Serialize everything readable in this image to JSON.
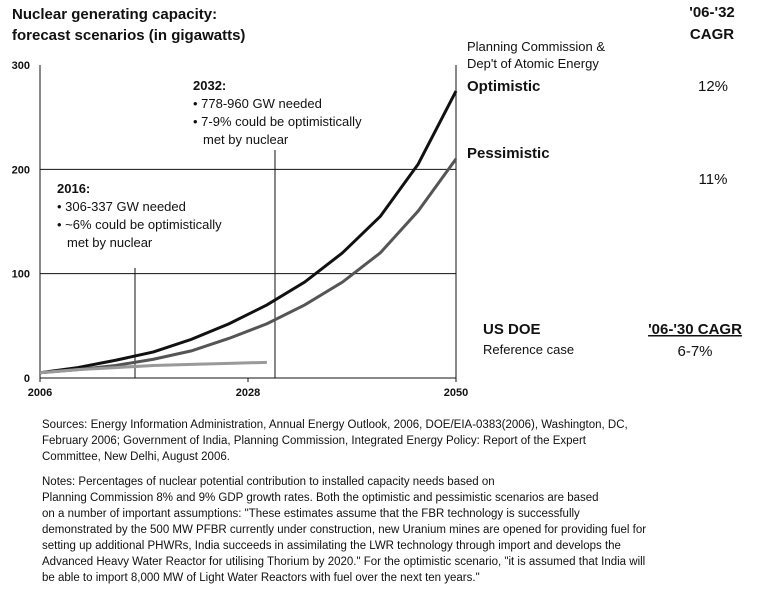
{
  "chart_data": {
    "type": "line",
    "title_lines": [
      "Nuclear generating capacity:",
      "forecast scenarios (in gigawatts)"
    ],
    "xlim": [
      2006,
      2050
    ],
    "xticks": [
      2006,
      2028,
      2050
    ],
    "ylim": [
      0,
      300
    ],
    "yticks": [
      0,
      100,
      200,
      300
    ],
    "grid": true,
    "x": [
      2006,
      2010,
      2014,
      2018,
      2022,
      2026,
      2030,
      2034,
      2038,
      2042,
      2046,
      2050
    ],
    "series": [
      {
        "name": "Optimistic",
        "color": "#111111",
        "cagr": "12%",
        "values": [
          5,
          10,
          17,
          25,
          37,
          52,
          70,
          92,
          120,
          155,
          205,
          275
        ]
      },
      {
        "name": "Pessimistic",
        "color": "#555555",
        "cagr": "11%",
        "values": [
          5,
          8,
          12,
          18,
          26,
          38,
          52,
          70,
          92,
          120,
          160,
          210
        ]
      },
      {
        "name": "US DOE",
        "color": "#999999",
        "subtitle": "Reference case",
        "cagr_header": "'06-'30 CAGR",
        "cagr": "6-7%",
        "values": [
          5,
          8,
          10,
          12,
          13,
          14,
          15,
          null,
          null,
          null,
          null,
          null
        ]
      }
    ],
    "cagr_header_lines": [
      "'06-'32",
      "CAGR"
    ],
    "source_lines": [
      "Planning Commission &",
      "Dep't of Atomic Energy"
    ],
    "annotations": [
      {
        "heading": "2032:",
        "lines": [
          "• 778-960 GW needed",
          "• 7-9% could be optimistically",
          "met by nuclear"
        ]
      },
      {
        "heading": "2016:",
        "lines": [
          "• 306-337 GW needed",
          "• ~6% could be optimistically",
          "met by nuclear"
        ]
      }
    ],
    "sources": [
      "Sources:  Energy Information Administration,  Annual Energy Outlook, 2006,  DOE/EIA-0383(2006), Washington, DC,",
      "February 2006; Government of India, Planning Commission,  Integrated Energy Policy:  Report of the Expert",
      "Committee, New Delhi, August 2006."
    ],
    "notes": [
      "Notes:  Percentages of nuclear potential contribution to installed capacity needs based on",
      "Planning Commission 8% and 9% GDP growth rates.  Both the optimistic and pessimistic scenarios are based",
      "on a number of important assumptions:  \"These estimates assume that the FBR technology is successfully",
      "demonstrated by the 500 MW PFBR currently under construction, new Uranium mines are opened for providing fuel for",
      "setting up additional PHWRs, India succeeds in assimilating the LWR technology through import and develops the",
      "Advanced Heavy Water Reactor for utilising Thorium by 2020.\"  For the optimistic scenario, \"it is assumed that India will",
      "be able to import 8,000 MW of Light Water Reactors with fuel over the next ten years.\""
    ]
  }
}
